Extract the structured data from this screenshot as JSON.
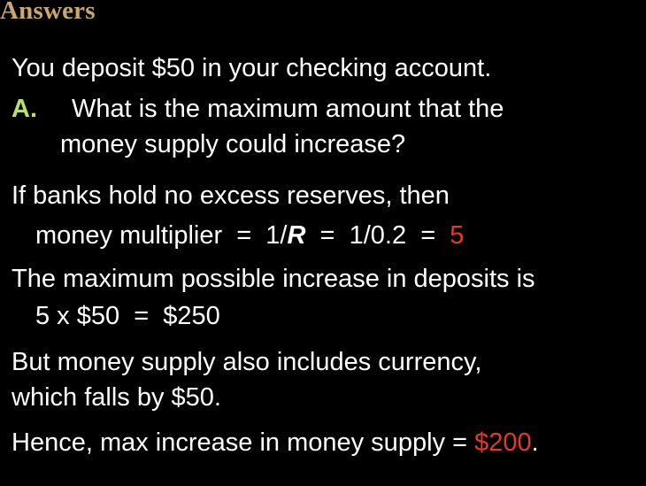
{
  "slide": {
    "title": "Answers",
    "colors": {
      "background": "#000000",
      "title": "#c9a86a",
      "question_label": "#b8e06a",
      "highlight": "#e23a2a",
      "text": "#ffffff"
    },
    "intro": "You deposit $50 in your checking account.",
    "question": {
      "label": "A.",
      "line1": "What is the maximum amount that the",
      "line2": "money supply could increase?"
    },
    "para1": {
      "line1": "If banks hold no excess reserves, then",
      "line2_prefix": "money multiplier  =  1/",
      "line2_var": "R",
      "line2_mid": "  =  1/0.2  =  ",
      "line2_value": "5"
    },
    "para2": {
      "line1": "The maximum possible increase in deposits is",
      "line2": "5 x $50  =  $250"
    },
    "para3": {
      "line1": "But money supply also includes currency,",
      "line2": "which falls by $50."
    },
    "para4": {
      "prefix": "Hence, max increase in money supply = ",
      "value": "$200",
      "suffix": "."
    }
  }
}
